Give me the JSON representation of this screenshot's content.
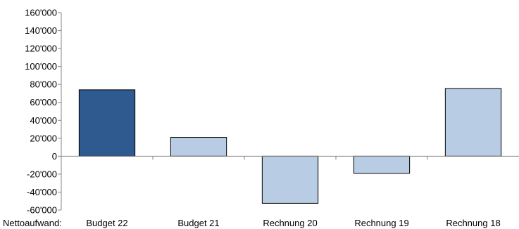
{
  "chart_data": {
    "type": "bar",
    "row_label": "Nettoaufwand:",
    "categories": [
      "Budget 22",
      "Budget 21",
      "Rechnung 20",
      "Rechnung 19",
      "Rechnung 18"
    ],
    "values": [
      74000,
      21000,
      -52500,
      -19000,
      75500
    ],
    "ylim": [
      -60000,
      160000
    ],
    "ytick_step": 20000,
    "ytick_labels": [
      "-60'000",
      "-40'000",
      "-20'000",
      "0",
      "20'000",
      "40'000",
      "60'000",
      "80'000",
      "100'000",
      "120'000",
      "140'000",
      "160'000"
    ],
    "grid": false,
    "colors": {
      "highlight": "#2F5A8F",
      "default": "#B8CCE4",
      "outline": "#000000",
      "axis": "#868686"
    }
  }
}
